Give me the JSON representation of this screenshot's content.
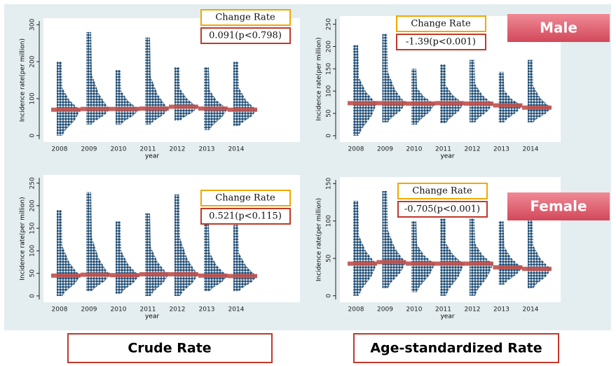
{
  "row_labels": [
    "Male",
    "Female"
  ],
  "column_labels": [
    "Crude Rate",
    "Age-standardized Rate"
  ],
  "chart_data": [
    {
      "type": "dotplot",
      "ylabel": "Incidence rate(per million)",
      "xlabel": "year",
      "categories": [
        "2008",
        "2009",
        "2010",
        "2011",
        "2012",
        "2013",
        "2014"
      ],
      "values": [
        70,
        72,
        72,
        73,
        78,
        73,
        70
      ],
      "max": [
        200,
        280,
        178,
        265,
        185,
        185,
        200
      ],
      "min": [
        0,
        30,
        30,
        30,
        40,
        15,
        25
      ],
      "ylim": [
        -10,
        310
      ],
      "yticks": [
        0,
        100,
        200,
        300
      ],
      "color": "#1b4a72",
      "median_color": "#c0504d",
      "annotation": {
        "title": "Change Rate",
        "text": "0.091(p<0.798)"
      }
    },
    {
      "type": "dotplot",
      "ylabel": "Incidence rate(per million)",
      "xlabel": "year",
      "categories": [
        "2008",
        "2009",
        "2010",
        "2011",
        "2012",
        "2013",
        "2014"
      ],
      "values": [
        73,
        73,
        72,
        73,
        72,
        68,
        63
      ],
      "max": [
        203,
        228,
        150,
        160,
        170,
        143,
        170
      ],
      "min": [
        0,
        30,
        25,
        28,
        30,
        30,
        30
      ],
      "ylim": [
        -8,
        262
      ],
      "yticks": [
        0,
        50,
        100,
        150,
        200,
        250
      ],
      "color": "#1b4a72",
      "median_color": "#c0504d",
      "annotation": {
        "title": "Change Rate",
        "text": "-1.39(p<0.001)"
      }
    },
    {
      "type": "dotplot",
      "ylabel": "Incidence rate(per million)",
      "xlabel": "year",
      "categories": [
        "2008",
        "2009",
        "2010",
        "2011",
        "2012",
        "2013",
        "2014"
      ],
      "values": [
        45,
        47,
        46,
        48,
        48,
        45,
        44
      ],
      "max": [
        190,
        230,
        165,
        183,
        225,
        160,
        157
      ],
      "min": [
        0,
        10,
        5,
        0,
        0,
        10,
        10
      ],
      "ylim": [
        -8,
        262
      ],
      "yticks": [
        0,
        50,
        100,
        150,
        200,
        250
      ],
      "color": "#1b4a72",
      "median_color": "#c0504d",
      "annotation": {
        "title": "Change Rate",
        "text": "0.521(p<0.115)"
      }
    },
    {
      "type": "dotplot",
      "ylabel": "Incidence rate(per million)",
      "xlabel": "year",
      "categories": [
        "2008",
        "2009",
        "2010",
        "2011",
        "2012",
        "2013",
        "2014"
      ],
      "values": [
        43,
        45,
        43,
        43,
        43,
        38,
        36
      ],
      "max": [
        127,
        140,
        100,
        103,
        103,
        100,
        105
      ],
      "min": [
        0,
        10,
        5,
        0,
        0,
        15,
        10
      ],
      "ylim": [
        -5,
        155
      ],
      "yticks": [
        0,
        50,
        100,
        150
      ],
      "color": "#1b4a72",
      "median_color": "#c0504d",
      "annotation": {
        "title": "Change Rate",
        "text": "-0.705(p<0.001)"
      }
    }
  ]
}
